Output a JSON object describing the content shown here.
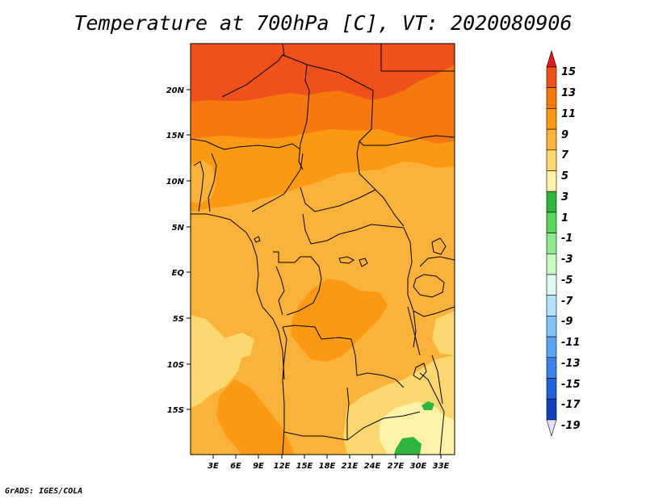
{
  "title": "Temperature at 700hPa [C], VT: 2020080906",
  "credit": "GrADS: IGES/COLA",
  "lat_labels": [
    "20N",
    "15N",
    "10N",
    "5N",
    "EQ",
    "5S",
    "10S",
    "15S"
  ],
  "lon_labels": [
    "3E",
    "6E",
    "9E",
    "12E",
    "15E",
    "18E",
    "21E",
    "24E",
    "27E",
    "30E",
    "33E"
  ],
  "colorbar": {
    "labels": [
      "15",
      "13",
      "11",
      "9",
      "7",
      "5",
      "3",
      "1",
      "-1",
      "-3",
      "-5",
      "-7",
      "-9",
      "-11",
      "-13",
      "-15",
      "-17",
      "-19"
    ],
    "colors": [
      "#e8351a",
      "#f0501a",
      "#f7780f",
      "#fb9a12",
      "#fbb23a",
      "#fcd870",
      "#fdf2a8",
      "#2fb540",
      "#5ad65a",
      "#90e98c",
      "#c8f8c4",
      "#e0f8f5",
      "#b4e2fb",
      "#84c4f8",
      "#5aa4f2",
      "#3c82e8",
      "#2060d8",
      "#1440bc",
      "#0c2296",
      "#141066"
    ],
    "top_cap": "#e01c1c",
    "bottom_cap": "#e6e0f8"
  },
  "fill_colors": {
    "t13": "#f0501a",
    "t11": "#f7780f",
    "t9": "#fb9a12",
    "t7": "#fbb23a",
    "t5": "#fcd870",
    "t3": "#fdf2a8",
    "t1": "#2fb540"
  }
}
